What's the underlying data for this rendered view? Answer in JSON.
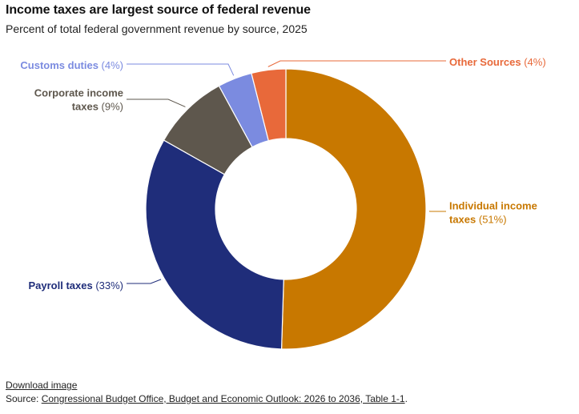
{
  "chart_data": {
    "type": "pie",
    "variant": "donut",
    "title": "Income taxes are largest source of federal revenue",
    "subtitle": "Percent of total federal government revenue by source, 2025",
    "slices": [
      {
        "name": "Individual income taxes",
        "label_lines": [
          "Individual income",
          "taxes"
        ],
        "value": 51,
        "pct_label": "(51%)",
        "color": "#C87800"
      },
      {
        "name": "Payroll taxes",
        "label_lines": [
          "Payroll taxes"
        ],
        "value": 33,
        "pct_label": "(33%)",
        "color": "#1F2D7A"
      },
      {
        "name": "Corporate income taxes",
        "label_lines": [
          "Corporate income",
          "taxes"
        ],
        "value": 9,
        "pct_label": "(9%)",
        "color": "#5E574D"
      },
      {
        "name": "Customs duties",
        "label_lines": [
          "Customs duties"
        ],
        "value": 4,
        "pct_label": "(4%)",
        "color": "#7B8BE0"
      },
      {
        "name": "Other Sources",
        "label_lines": [
          "Other Sources"
        ],
        "value": 4,
        "pct_label": "(4%)",
        "color": "#E8693A"
      }
    ]
  },
  "footer": {
    "download_label": "Download image",
    "source_prefix": "Source: ",
    "source_link_text": "Congressional Budget Office, Budget and Economic Outlook: 2026 to 2036, Table 1-1",
    "source_suffix": "."
  }
}
